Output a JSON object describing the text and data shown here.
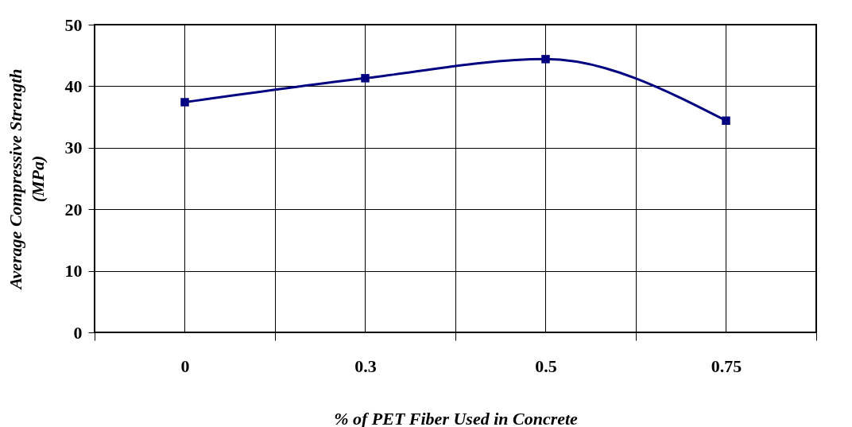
{
  "chart_data": {
    "type": "line",
    "xlabel": "% of PET Fiber Used in Concrete",
    "ylabel": "Average Compressive Strength (MPa)",
    "categories": [
      "0",
      "0.3",
      "0.5",
      "0.75"
    ],
    "series": [
      {
        "color": "#000080",
        "values": [
          37.4,
          41.3,
          44.4,
          34.4
        ]
      }
    ],
    "ylim": [
      0,
      50
    ],
    "yticks": [
      0,
      10,
      20,
      30,
      40,
      50
    ],
    "grid": true,
    "marker": "square",
    "line_style": "solid"
  }
}
